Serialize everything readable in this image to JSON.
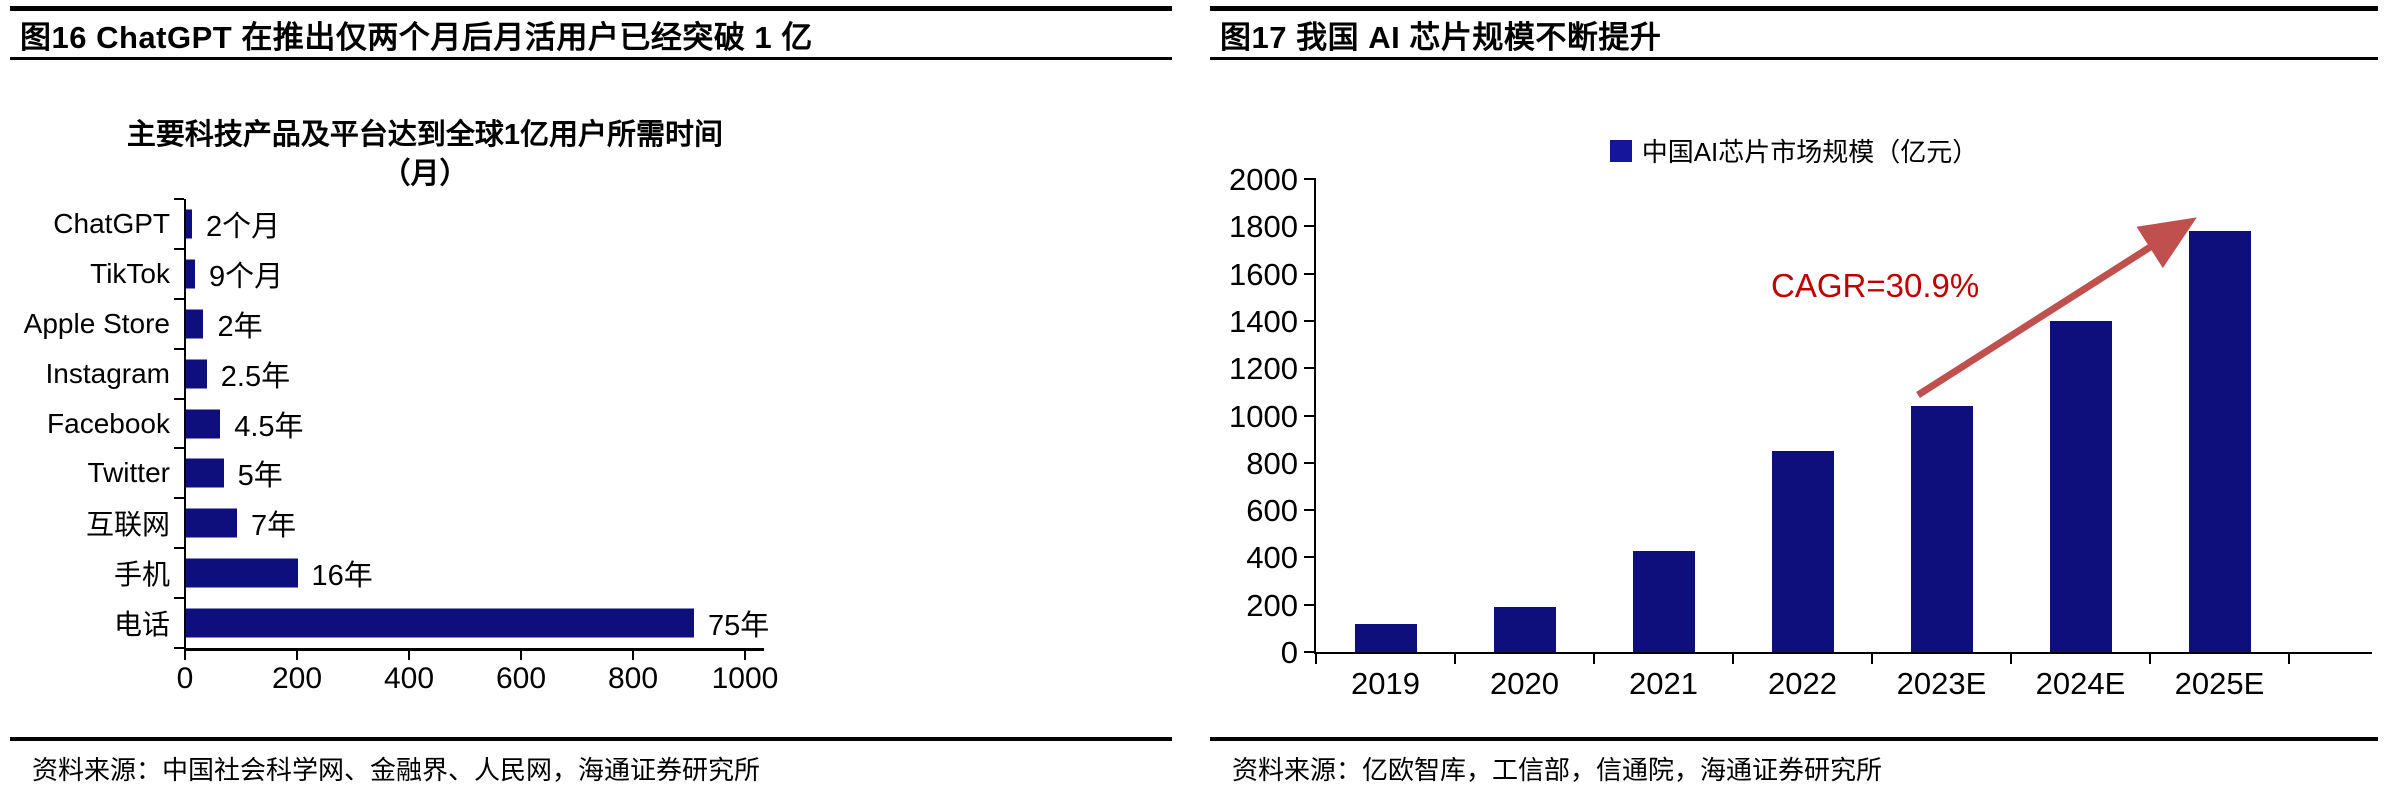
{
  "panels": {
    "left": {
      "title": "图16 ChatGPT 在推出仅两个月后月活用户已经突破 1 亿",
      "source": "资料来源：中国社会科学网、金融界、人民网，海通证券研究所"
    },
    "right": {
      "title": "图17 我国 AI 芯片规模不断提升",
      "source": "资料来源：亿欧智库，工信部，信通院，海通证券研究所"
    }
  },
  "chart_data": [
    {
      "type": "bar",
      "orientation": "horizontal",
      "title": "主要科技产品及平台达到全球1亿用户所需时间",
      "title_line2": "（月）",
      "categories": [
        "ChatGPT",
        "TikTok",
        "Apple Store",
        "Instagram",
        "Facebook",
        "Twitter",
        "互联网",
        "手机",
        "电话"
      ],
      "values_months": [
        2,
        9,
        24,
        30,
        54,
        60,
        84,
        192,
        900
      ],
      "value_labels": [
        "2个月",
        "9个月",
        "2年",
        "2.5年",
        "4.5年",
        "5年",
        "7年",
        "16年",
        "75年"
      ],
      "xlim": [
        0,
        1000
      ],
      "x_ticks": [
        0,
        200,
        400,
        600,
        800,
        1000
      ],
      "bar_color": "#0E0E7C",
      "axis_color": "#000000",
      "grid": false
    },
    {
      "type": "bar",
      "orientation": "vertical",
      "legend": "中国AI芯片市场规模（亿元）",
      "categories": [
        "2019",
        "2020",
        "2021",
        "2022",
        "2023E",
        "2024E",
        "2025E"
      ],
      "values": [
        120,
        190,
        425,
        850,
        1040,
        1400,
        1780
      ],
      "ylim": [
        0,
        2000
      ],
      "y_tick_step": 200,
      "bar_color": "#0E0E7C",
      "legend_color": "#15159B",
      "annotation": {
        "text": "CAGR=30.9%",
        "color": "#C00000"
      },
      "arrow_color": "#C0504D",
      "grid": false
    }
  ]
}
